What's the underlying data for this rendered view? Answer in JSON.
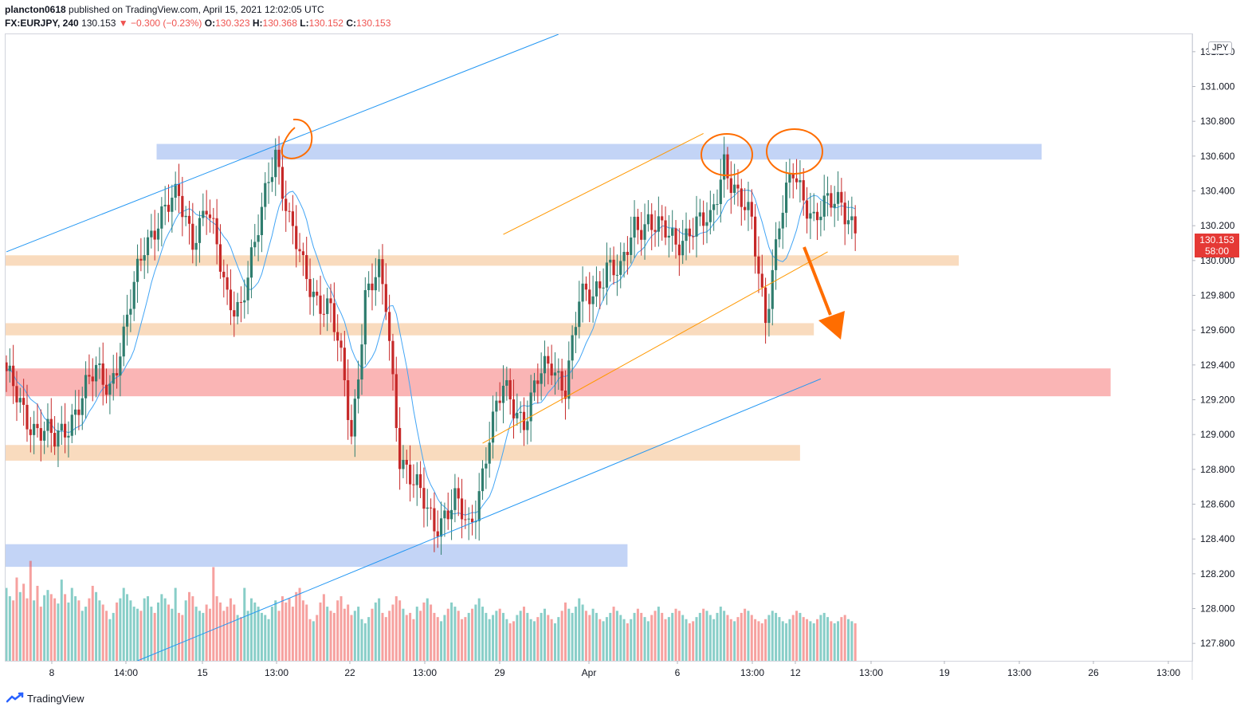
{
  "header": {
    "author": "plancton0618",
    "published_text": "published on TradingView.com, April 15, 2021 12:02:05 UTC",
    "symbol": "FX:EURJPY, 240",
    "last": "130.153",
    "change": "−0.300 (−0.23%)",
    "o_label": "O:",
    "o_value": "130.323",
    "h_label": "H:",
    "h_value": "130.368",
    "l_label": "L:",
    "l_value": "130.152",
    "c_label": "C:",
    "c_value": "130.153"
  },
  "price_axis": {
    "currency": "JPY",
    "last_price": "130.153",
    "countdown": "58:00"
  },
  "footer": {
    "brand": "TradingView"
  },
  "colors": {
    "bull": "#26a69a",
    "bear": "#ef5350",
    "candle_bull": "#2f7d6e",
    "candle_bear": "#c62828",
    "ma_line": "#42a5f5",
    "blue_trend": "#2196f3",
    "orange_trend": "#ff9800",
    "supply_zone": "#b9cdf5",
    "demand_zone": "#f8d5b3",
    "red_zone": "#f9a8a8",
    "markup": "#ff6d00"
  },
  "chart_data": {
    "type": "candlestick",
    "symbol": "FX:EURJPY",
    "timeframe": "240",
    "ylim": [
      127.7,
      131.3
    ],
    "yticks": [
      127.8,
      128.0,
      128.2,
      128.4,
      128.6,
      128.8,
      129.0,
      129.2,
      129.4,
      129.6,
      129.8,
      130.0,
      130.2,
      130.4,
      130.6,
      130.8,
      131.0,
      131.2
    ],
    "ytick_labels": [
      "127.800",
      "128.000",
      "128.200",
      "128.400",
      "128.600",
      "128.800",
      "129.000",
      "129.200",
      "129.400",
      "129.600",
      "129.800",
      "130.000",
      "130.200",
      "130.400",
      "130.600",
      "130.800",
      "131.000",
      "131.200"
    ],
    "xtick_labels": [
      "8",
      "14:00",
      "15",
      "13:00",
      "22",
      "13:00",
      "29",
      "Apr",
      "6",
      "13:00",
      "12",
      "13:00",
      "19",
      "13:00",
      "26",
      "13:00"
    ],
    "close_anchors": [
      [
        0,
        129.32
      ],
      [
        8,
        129.05
      ],
      [
        14,
        128.95
      ],
      [
        20,
        129.15
      ],
      [
        26,
        129.35
      ],
      [
        30,
        129.3
      ],
      [
        34,
        129.55
      ],
      [
        40,
        130.1
      ],
      [
        44,
        130.25
      ],
      [
        50,
        130.35
      ],
      [
        54,
        130.15
      ],
      [
        58,
        130.3
      ],
      [
        64,
        129.8
      ],
      [
        68,
        129.75
      ],
      [
        72,
        130.05
      ],
      [
        76,
        130.5
      ],
      [
        78,
        130.65
      ],
      [
        82,
        130.2
      ],
      [
        86,
        129.95
      ],
      [
        90,
        129.8
      ],
      [
        94,
        129.7
      ],
      [
        98,
        129.3
      ],
      [
        100,
        129.0
      ],
      [
        104,
        129.8
      ],
      [
        108,
        129.9
      ],
      [
        110,
        129.75
      ],
      [
        114,
        128.9
      ],
      [
        118,
        128.7
      ],
      [
        124,
        128.5
      ],
      [
        130,
        128.6
      ],
      [
        134,
        128.45
      ],
      [
        136,
        128.6
      ],
      [
        140,
        129.0
      ],
      [
        144,
        129.25
      ],
      [
        150,
        129.1
      ],
      [
        154,
        129.3
      ],
      [
        158,
        129.4
      ],
      [
        162,
        129.3
      ],
      [
        166,
        129.75
      ],
      [
        170,
        129.8
      ],
      [
        174,
        130.0
      ],
      [
        178,
        129.9
      ],
      [
        182,
        130.2
      ],
      [
        186,
        130.25
      ],
      [
        190,
        130.15
      ],
      [
        194,
        130.1
      ],
      [
        198,
        130.2
      ],
      [
        204,
        130.2
      ],
      [
        208,
        130.6
      ],
      [
        212,
        130.35
      ],
      [
        216,
        130.2
      ],
      [
        220,
        129.7
      ],
      [
        224,
        130.2
      ],
      [
        228,
        130.5
      ],
      [
        232,
        130.35
      ],
      [
        234,
        130.25
      ],
      [
        238,
        130.3
      ],
      [
        242,
        130.35
      ],
      [
        246,
        130.2
      ],
      [
        250,
        130.4
      ],
      [
        254,
        130.5
      ],
      [
        258,
        130.35
      ],
      [
        262,
        130.15
      ]
    ],
    "volume": [
      70,
      62,
      58,
      80,
      66,
      74,
      60,
      96,
      58,
      72,
      52,
      63,
      68,
      64,
      60,
      55,
      78,
      64,
      56,
      70,
      62,
      58,
      48,
      52,
      60,
      72,
      66,
      58,
      54,
      48,
      40,
      46,
      56,
      60,
      70,
      64,
      58,
      52,
      50,
      48,
      60,
      62,
      52,
      46,
      56,
      64,
      60,
      54,
      50,
      70,
      46,
      44,
      58,
      66,
      62,
      52,
      48,
      46,
      54,
      50,
      90,
      62,
      56,
      48,
      52,
      60,
      54,
      44,
      42,
      70,
      48,
      60,
      56,
      52,
      46,
      44,
      40,
      52,
      58,
      48,
      62,
      56,
      60,
      52,
      66,
      70,
      58,
      54,
      40,
      38,
      44,
      56,
      64,
      52,
      48,
      46,
      58,
      62,
      50,
      54,
      44,
      48,
      52,
      40,
      36,
      42,
      50,
      56,
      60,
      46,
      42,
      48,
      54,
      62,
      58,
      50,
      44,
      46,
      40,
      52,
      48,
      56,
      60,
      54,
      46,
      42,
      38,
      44,
      50,
      56,
      52,
      48,
      40,
      42,
      46,
      50,
      54,
      60,
      52,
      46,
      40,
      44,
      48,
      50,
      46,
      40,
      36,
      38,
      44,
      48,
      52,
      46,
      40,
      38,
      42,
      46,
      50,
      44,
      40,
      36,
      42,
      48,
      56,
      50,
      46,
      52,
      60,
      54,
      48,
      44,
      50,
      46,
      40,
      38,
      42,
      46,
      52,
      48,
      44,
      40,
      36,
      40,
      46,
      50,
      46,
      42,
      38,
      44,
      48,
      52,
      46,
      40,
      42,
      46,
      50,
      48,
      44,
      40,
      36,
      38,
      42,
      46,
      50,
      48,
      44,
      40,
      46,
      52,
      48,
      44,
      40,
      38,
      42,
      46,
      50,
      48,
      44,
      40,
      38,
      36,
      40,
      44,
      48,
      46,
      42,
      38,
      36,
      40,
      44,
      48,
      46,
      42,
      40,
      38,
      36,
      40,
      44,
      46,
      42,
      38,
      36,
      38,
      42,
      44,
      40,
      38,
      36
    ],
    "zones": [
      {
        "name": "resistance",
        "low": 130.58,
        "high": 130.67,
        "from_bar": 44,
        "to_bar": 300
      },
      {
        "name": "demand-130",
        "low": 129.97,
        "high": 130.03,
        "from_bar": 0,
        "to_bar": 276
      },
      {
        "name": "demand-129.6",
        "low": 129.57,
        "high": 129.64,
        "from_bar": 0,
        "to_bar": 234
      },
      {
        "name": "red-zone",
        "low": 129.22,
        "high": 129.38,
        "from_bar": 0,
        "to_bar": 320
      },
      {
        "name": "demand-128.9",
        "low": 128.85,
        "high": 128.94,
        "from_bar": 0,
        "to_bar": 230
      },
      {
        "name": "support",
        "low": 128.24,
        "high": 128.37,
        "from_bar": 0,
        "to_bar": 180
      }
    ],
    "trendlines": [
      {
        "name": "upper-blue",
        "points": [
          [
            0,
            130.05
          ],
          [
            160,
            131.3
          ]
        ]
      },
      {
        "name": "lower-blue",
        "points": [
          [
            38,
            127.7
          ],
          [
            236,
            129.32
          ]
        ]
      },
      {
        "name": "orange-upper",
        "points": [
          [
            144,
            130.15
          ],
          [
            202,
            130.73
          ]
        ]
      },
      {
        "name": "orange-lower",
        "points": [
          [
            138,
            128.95
          ],
          [
            238,
            130.05
          ]
        ]
      }
    ]
  }
}
